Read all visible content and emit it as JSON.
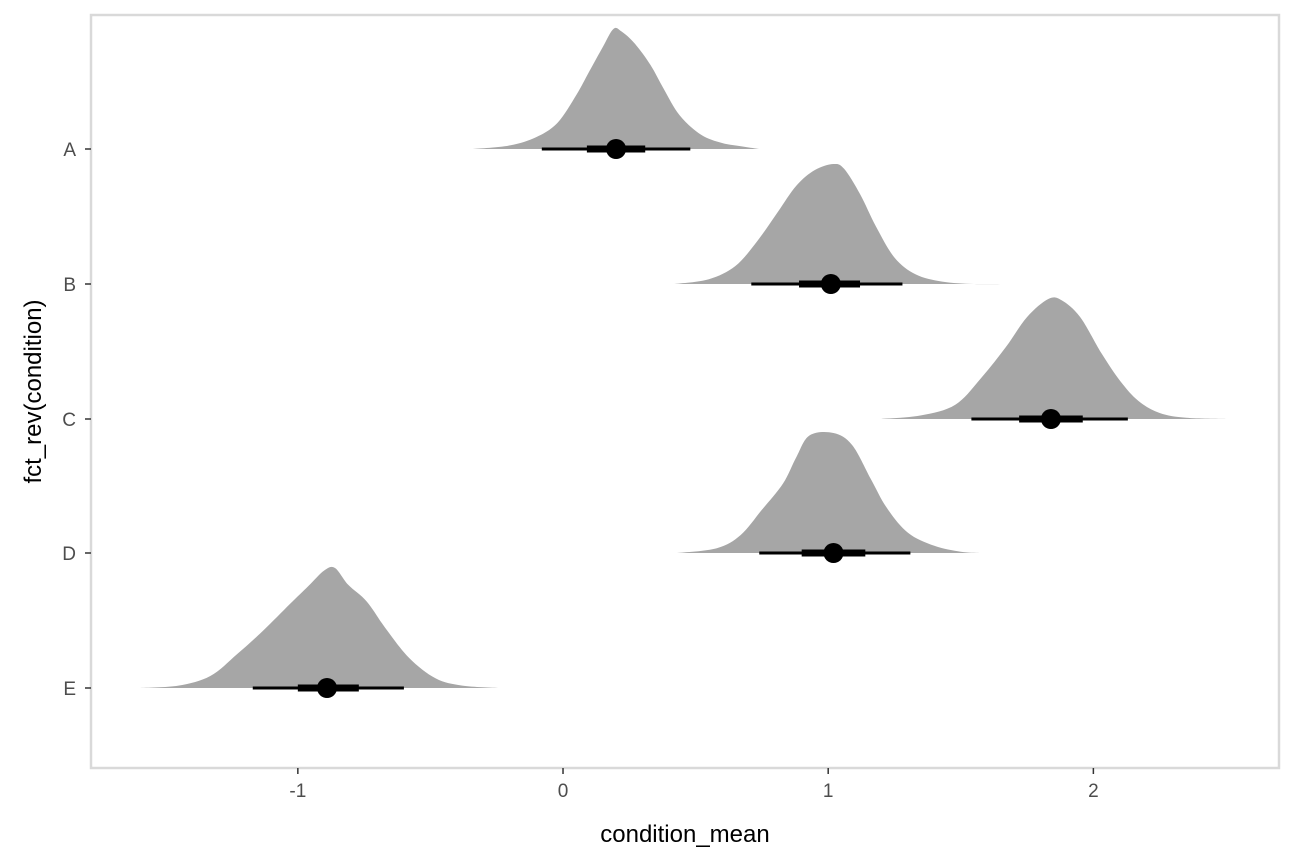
{
  "chart_data": {
    "type": "halfeye",
    "xlabel": "condition_mean",
    "ylabel": "fct_rev(condition)",
    "xlim": [
      -1.78,
      2.7
    ],
    "x_ticks": [
      -1,
      0,
      1,
      2
    ],
    "x_tick_labels": [
      "-1",
      "0",
      "1",
      "2"
    ],
    "categories": [
      "A",
      "B",
      "C",
      "D",
      "E"
    ],
    "grid": false,
    "colors": {
      "density_fill": "#a6a6a6",
      "interval": "#000000",
      "point": "#000000",
      "panel_border": "#d9d9d9"
    },
    "series": [
      {
        "category": "A",
        "point": 0.2,
        "interval_66": [
          0.09,
          0.31
        ],
        "interval_95": [
          -0.08,
          0.48
        ],
        "density": [
          [
            -0.34,
            0.0
          ],
          [
            -0.2,
            0.03
          ],
          [
            -0.1,
            0.1
          ],
          [
            -0.02,
            0.22
          ],
          [
            0.05,
            0.45
          ],
          [
            0.1,
            0.65
          ],
          [
            0.15,
            0.85
          ],
          [
            0.19,
            1.0
          ],
          [
            0.22,
            0.98
          ],
          [
            0.27,
            0.88
          ],
          [
            0.33,
            0.7
          ],
          [
            0.38,
            0.5
          ],
          [
            0.44,
            0.28
          ],
          [
            0.52,
            0.12
          ],
          [
            0.6,
            0.05
          ],
          [
            0.68,
            0.02
          ],
          [
            0.74,
            0.0
          ]
        ]
      },
      {
        "category": "B",
        "point": 1.01,
        "interval_66": [
          0.89,
          1.12
        ],
        "interval_95": [
          0.71,
          1.28
        ],
        "density": [
          [
            0.42,
            0.0
          ],
          [
            0.55,
            0.04
          ],
          [
            0.65,
            0.15
          ],
          [
            0.73,
            0.35
          ],
          [
            0.81,
            0.6
          ],
          [
            0.88,
            0.82
          ],
          [
            0.95,
            0.95
          ],
          [
            1.02,
            1.0
          ],
          [
            1.06,
            0.96
          ],
          [
            1.12,
            0.75
          ],
          [
            1.18,
            0.48
          ],
          [
            1.25,
            0.22
          ],
          [
            1.33,
            0.08
          ],
          [
            1.43,
            0.02
          ],
          [
            1.55,
            0.0
          ],
          [
            1.67,
            0.0
          ]
        ]
      },
      {
        "category": "C",
        "point": 1.84,
        "interval_66": [
          1.72,
          1.96
        ],
        "interval_95": [
          1.54,
          2.13
        ],
        "density": [
          [
            1.2,
            0.0
          ],
          [
            1.35,
            0.03
          ],
          [
            1.48,
            0.12
          ],
          [
            1.58,
            0.35
          ],
          [
            1.67,
            0.6
          ],
          [
            1.75,
            0.85
          ],
          [
            1.83,
            1.0
          ],
          [
            1.88,
            0.99
          ],
          [
            1.95,
            0.85
          ],
          [
            2.03,
            0.55
          ],
          [
            2.1,
            0.32
          ],
          [
            2.17,
            0.15
          ],
          [
            2.25,
            0.05
          ],
          [
            2.35,
            0.01
          ],
          [
            2.5,
            0.0
          ]
        ]
      },
      {
        "category": "D",
        "point": 1.02,
        "interval_66": [
          0.9,
          1.14
        ],
        "interval_95": [
          0.74,
          1.31
        ],
        "density": [
          [
            0.43,
            0.0
          ],
          [
            0.58,
            0.04
          ],
          [
            0.67,
            0.15
          ],
          [
            0.75,
            0.36
          ],
          [
            0.83,
            0.58
          ],
          [
            0.88,
            0.8
          ],
          [
            0.93,
            0.98
          ],
          [
            1.02,
            1.0
          ],
          [
            1.09,
            0.9
          ],
          [
            1.16,
            0.62
          ],
          [
            1.22,
            0.38
          ],
          [
            1.3,
            0.17
          ],
          [
            1.4,
            0.06
          ],
          [
            1.5,
            0.01
          ],
          [
            1.57,
            0.0
          ]
        ]
      },
      {
        "category": "E",
        "point": -0.89,
        "interval_66": [
          -1.0,
          -0.77
        ],
        "interval_95": [
          -1.17,
          -0.6
        ],
        "density": [
          [
            -1.6,
            0.0
          ],
          [
            -1.45,
            0.02
          ],
          [
            -1.33,
            0.1
          ],
          [
            -1.23,
            0.28
          ],
          [
            -1.13,
            0.48
          ],
          [
            -1.03,
            0.7
          ],
          [
            -0.96,
            0.85
          ],
          [
            -0.9,
            0.98
          ],
          [
            -0.86,
            1.0
          ],
          [
            -0.81,
            0.86
          ],
          [
            -0.74,
            0.72
          ],
          [
            -0.67,
            0.5
          ],
          [
            -0.58,
            0.25
          ],
          [
            -0.48,
            0.08
          ],
          [
            -0.38,
            0.02
          ],
          [
            -0.24,
            0.0
          ]
        ]
      }
    ]
  }
}
